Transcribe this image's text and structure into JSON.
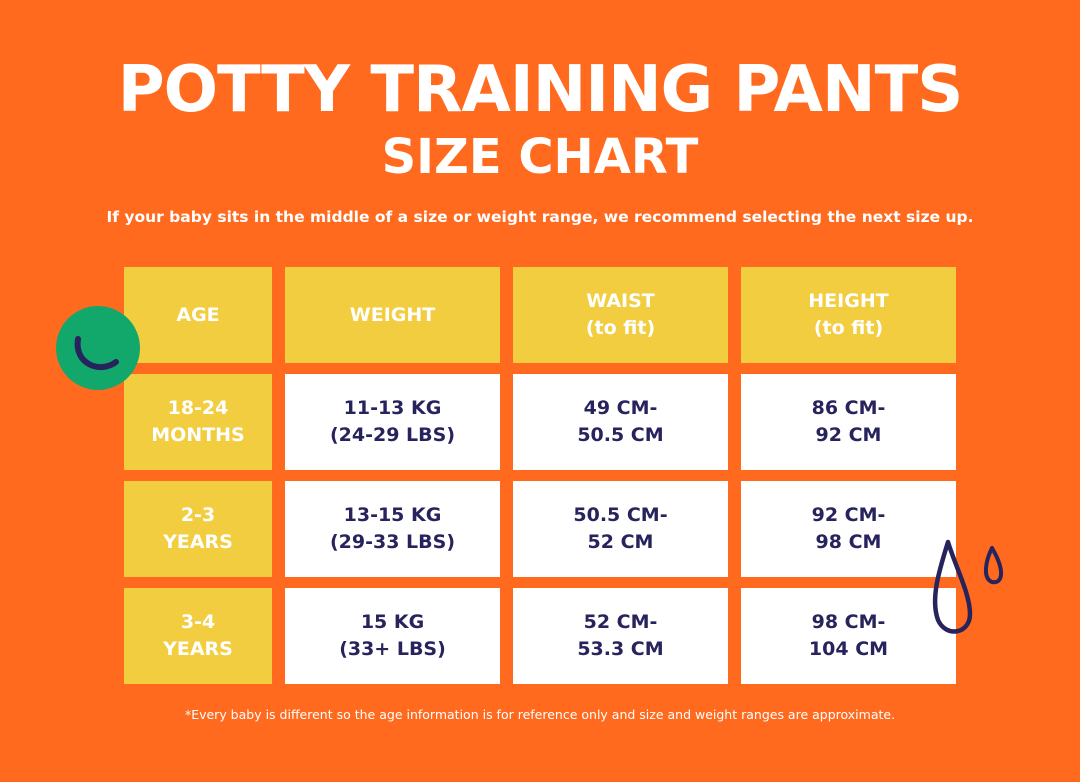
{
  "title": "POTTY TRAINING PANTS",
  "subtitle": "SIZE CHART",
  "note": "If your baby sits in the middle of a size or weight range, we recommend selecting the next size up.",
  "table": {
    "headers": [
      "AGE",
      "WEIGHT",
      "WAIST\n(to fit)",
      "HEIGHT\n(to fit)"
    ],
    "rows": [
      [
        "18-24\nMONTHS",
        "11-13 KG\n(24-29 LBS)",
        "49 CM-\n50.5 CM",
        "86 CM-\n92 CM"
      ],
      [
        "2-3\nYEARS",
        "13-15 KG\n(29-33 LBS)",
        "50.5 CM-\n52 CM",
        "92 CM-\n98 CM"
      ],
      [
        "3-4\nYEARS",
        "15 KG\n(33+ LBS)",
        "52 CM-\n53.3 CM",
        "98 CM-\n104 CM"
      ]
    ]
  },
  "footnote": "*Every baby is different so the age information is for reference only and size and weight ranges are approximate.",
  "colors": {
    "background": "#FF6A1F",
    "header": "#F2CD3F",
    "text_dark": "#27235C",
    "accent_green": "#13A86B"
  },
  "icons": [
    "smile-circle-icon",
    "water-drops-icon"
  ]
}
